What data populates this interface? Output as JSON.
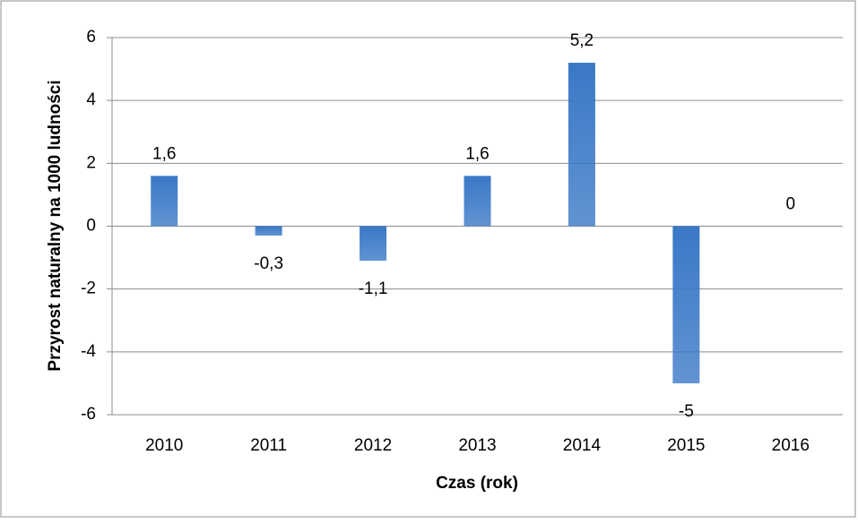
{
  "chart_data": {
    "type": "bar",
    "y_label": "Przyrost naturalny na 1000 ludności",
    "x_label": "Czas (rok)",
    "categories": [
      "2010",
      "2011",
      "2012",
      "2013",
      "2014",
      "2015",
      "2016"
    ],
    "values": [
      1.6,
      -0.3,
      -1.1,
      1.6,
      5.2,
      -5,
      0
    ],
    "value_labels": [
      "1,6",
      "-0,3",
      "-1,1",
      "1,6",
      "5,2",
      "-5",
      "0"
    ],
    "color": "#3a78c6",
    "ylim": [
      -6,
      6
    ],
    "yticks": [
      -6,
      -4,
      -2,
      0,
      2,
      4,
      6
    ],
    "grid": true
  }
}
